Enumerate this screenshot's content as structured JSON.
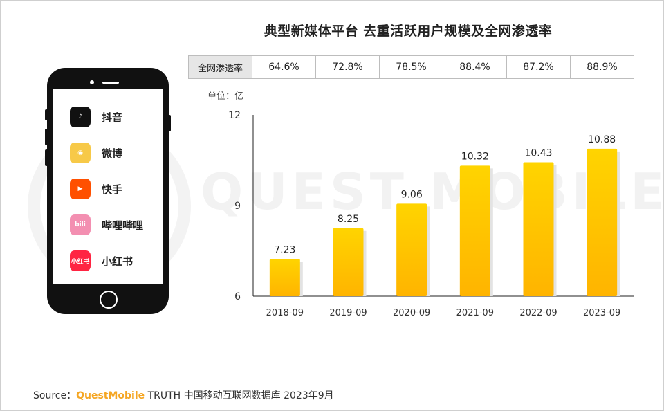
{
  "title": "典型新媒体平台 去重活跃用户规模及全网渗透率",
  "penetration": {
    "label": "全网渗透率",
    "values": [
      "64.6%",
      "72.8%",
      "78.5%",
      "88.4%",
      "87.2%",
      "88.9%"
    ]
  },
  "unit_label": "单位：亿",
  "watermark": "QUEST MOBILE",
  "apps": [
    {
      "name": "抖音",
      "icon": "douyin-icon",
      "color": "#111111",
      "glyph": "♪"
    },
    {
      "name": "微博",
      "icon": "weibo-icon",
      "color": "#f7c948",
      "glyph": "◉"
    },
    {
      "name": "快手",
      "icon": "kuaishou-icon",
      "color": "#ff5000",
      "glyph": "▶"
    },
    {
      "name": "哔哩哔哩",
      "icon": "bilibili-icon",
      "color": "#f38fb1",
      "glyph": "bili"
    },
    {
      "name": "小红书",
      "icon": "xiaohongshu-icon",
      "color": "#ff2442",
      "glyph": "小红书"
    }
  ],
  "chart_data": {
    "type": "bar",
    "categories": [
      "2018-09",
      "2019-09",
      "2020-09",
      "2021-09",
      "2022-09",
      "2023-09"
    ],
    "values": [
      7.23,
      8.25,
      9.06,
      10.32,
      10.43,
      10.88
    ],
    "value_labels": [
      "7.23",
      "8.25",
      "9.06",
      "10.32",
      "10.43",
      "10.88"
    ],
    "ylim": [
      6,
      12
    ],
    "yticks": [
      6,
      9,
      12
    ],
    "bar_color_top": "#ffd400",
    "bar_color_bottom": "#ffb400"
  },
  "source": {
    "prefix": "Source：",
    "brand": "QuestMobile",
    "rest": " TRUTH 中国移动互联网数据库 2023年9月"
  }
}
